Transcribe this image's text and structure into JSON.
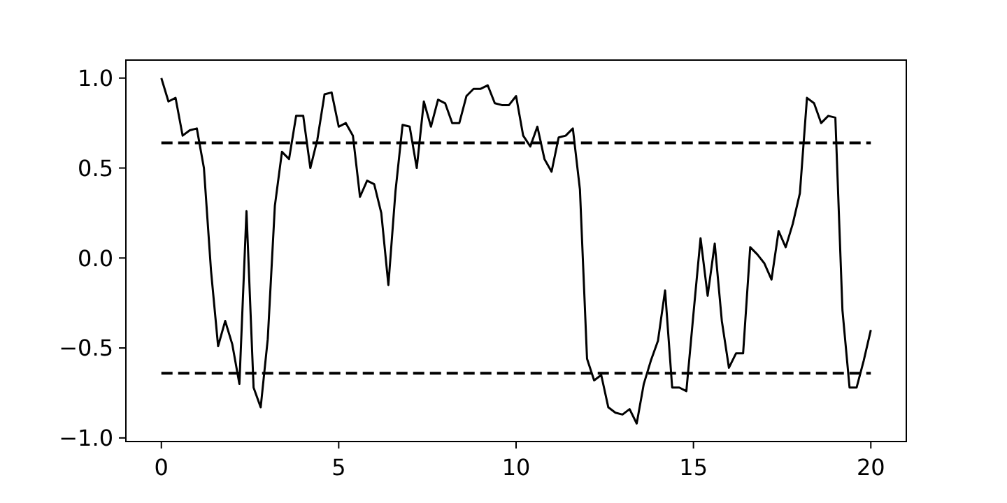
{
  "chart_data": {
    "type": "line",
    "x": [
      0,
      0.2,
      0.4,
      0.6,
      0.8,
      1,
      1.2,
      1.4,
      1.6,
      1.8,
      2,
      2.2,
      2.4,
      2.6,
      2.8,
      3,
      3.2,
      3.4,
      3.6,
      3.8,
      4,
      4.2,
      4.4,
      4.6,
      4.8,
      5,
      5.2,
      5.4,
      5.6,
      5.8,
      6,
      6.2,
      6.4,
      6.6,
      6.8,
      7,
      7.2,
      7.4,
      7.6,
      7.8,
      8,
      8.2,
      8.4,
      8.6,
      8.8,
      9,
      9.2,
      9.4,
      9.6,
      9.8,
      10,
      10.2,
      10.4,
      10.6,
      10.8,
      11,
      11.2,
      11.4,
      11.6,
      11.8,
      12,
      12.2,
      12.4,
      12.6,
      12.8,
      13,
      13.2,
      13.4,
      13.6,
      13.8,
      14,
      14.2,
      14.4,
      14.6,
      14.8,
      15,
      15.2,
      15.4,
      15.6,
      15.8,
      16,
      16.2,
      16.4,
      16.6,
      16.8,
      17,
      17.2,
      17.4,
      17.6,
      17.8,
      18,
      18.2,
      18.4,
      18.6,
      18.8,
      19,
      19.2,
      19.4,
      19.6,
      19.8,
      20
    ],
    "series": [
      {
        "color": "#000000",
        "values": [
          1.0,
          0.87,
          0.89,
          0.68,
          0.71,
          0.72,
          0.5,
          -0.07,
          -0.49,
          -0.35,
          -0.48,
          -0.7,
          0.26,
          -0.72,
          -0.83,
          -0.45,
          0.29,
          0.59,
          0.55,
          0.79,
          0.79,
          0.5,
          0.66,
          0.91,
          0.92,
          0.73,
          0.75,
          0.68,
          0.34,
          0.43,
          0.41,
          0.25,
          -0.15,
          0.37,
          0.74,
          0.73,
          0.5,
          0.87,
          0.73,
          0.88,
          0.86,
          0.75,
          0.75,
          0.9,
          0.94,
          0.94,
          0.96,
          0.86,
          0.85,
          0.85,
          0.9,
          0.68,
          0.62,
          0.73,
          0.55,
          0.48,
          0.67,
          0.68,
          0.72,
          0.38,
          -0.56,
          -0.68,
          -0.65,
          -0.83,
          -0.86,
          -0.87,
          -0.84,
          -0.92,
          -0.7,
          -0.57,
          -0.46,
          -0.18,
          -0.72,
          -0.72,
          -0.74,
          -0.31,
          0.11,
          -0.21,
          0.08,
          -0.35,
          -0.61,
          -0.53,
          -0.53,
          0.06,
          0.02,
          -0.03,
          -0.12,
          0.15,
          0.06,
          0.19,
          0.36,
          0.89,
          0.86,
          0.75,
          0.79,
          0.78,
          -0.29,
          -0.72,
          -0.72,
          -0.57,
          -0.4
        ]
      }
    ],
    "xlim": [
      -1,
      21
    ],
    "xticks": [
      0,
      5,
      10,
      15,
      20
    ],
    "ylim": [
      -1.02,
      1.1
    ],
    "yticks": [
      {
        "value": -1,
        "label": "−1.0"
      },
      {
        "value": -0.5,
        "label": "−0.5"
      },
      {
        "value": 0,
        "label": "0.0"
      },
      {
        "value": 0.5,
        "label": "0.5"
      },
      {
        "value": 1,
        "label": "1.0"
      }
    ],
    "ref_lines": [
      {
        "axis": "y",
        "value": 0.64,
        "line_style": "dashed",
        "color": "#000000"
      },
      {
        "axis": "y",
        "value": -0.64,
        "line_style": "dashed",
        "color": "#000000"
      }
    ],
    "line_style": "solid",
    "marker": "none",
    "grid": false
  }
}
